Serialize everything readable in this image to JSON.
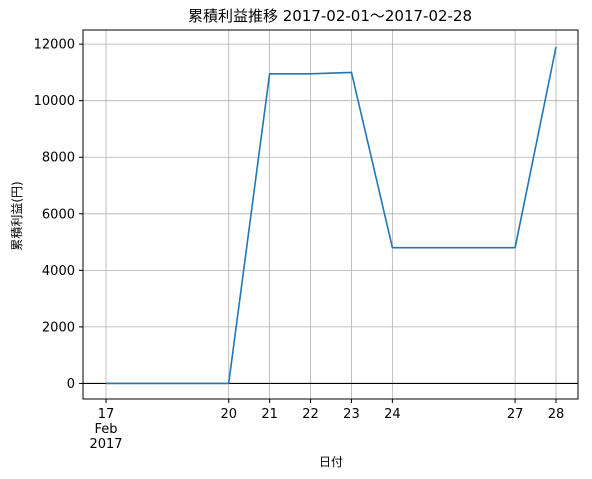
{
  "chart_data": {
    "type": "line",
    "title": "累積利益推移  2017-02-01〜2017-02-28",
    "xlabel": "日付",
    "ylabel": "累積利益(円)",
    "x_ticks": [
      "17",
      "20",
      "21",
      "22",
      "23",
      "24",
      "27",
      "28"
    ],
    "x_tick_sub": [
      "Feb",
      "2017"
    ],
    "x": [
      "2017-02-17",
      "2017-02-20",
      "2017-02-21",
      "2017-02-22",
      "2017-02-23",
      "2017-02-24",
      "2017-02-27",
      "2017-02-28"
    ],
    "series": [
      {
        "values": [
          0,
          0,
          10950,
          10950,
          11000,
          4800,
          4800,
          11900
        ]
      }
    ],
    "y_ticks": [
      0,
      2000,
      4000,
      6000,
      8000,
      10000,
      12000
    ],
    "ylim": [
      -550,
      12500
    ],
    "grid": true,
    "line_color": "#1f77b4",
    "zero_line_color": "#000000"
  }
}
